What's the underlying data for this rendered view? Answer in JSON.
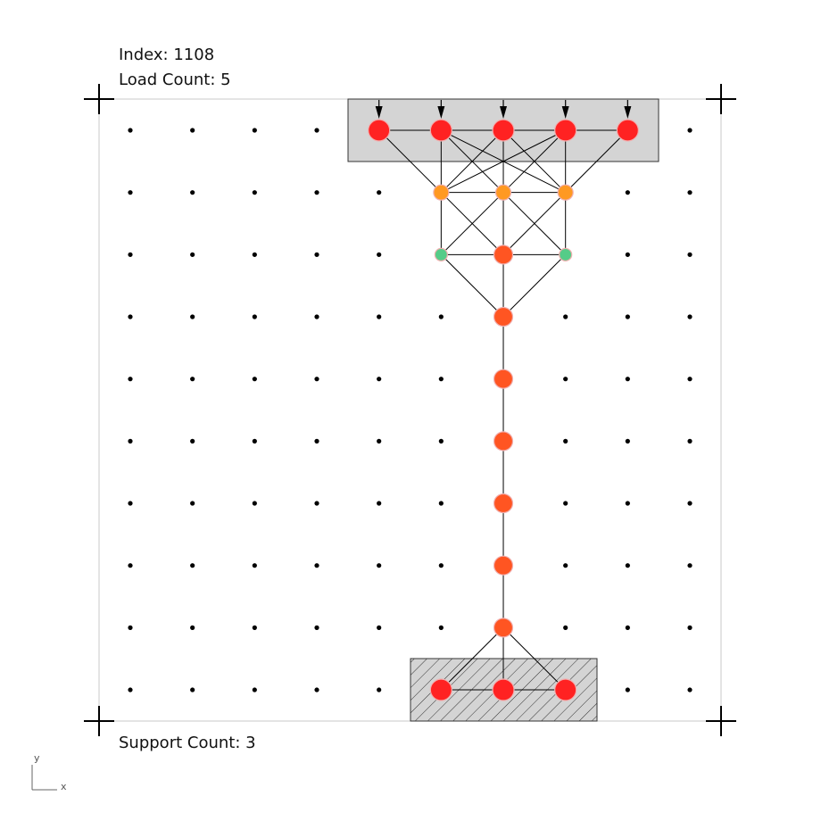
{
  "labels": {
    "index_prefix": "Index: ",
    "index_value": "1108",
    "load_prefix": "Load Count: ",
    "load_value": "5",
    "support_prefix": "Support Count: ",
    "support_value": "3"
  },
  "axis_indicator": {
    "x_label": "x",
    "y_label": "y"
  },
  "colors": {
    "boundary": "#c8c8c8",
    "grid_dot": "#000000",
    "edge": "#000000",
    "load_region_fill": "#d4d4d4",
    "support_region_fill": "#d4d4d4",
    "node_red": "#ff2222",
    "node_orange_red": "#ff5522",
    "node_orange": "#ff9922",
    "node_green": "#55cc88",
    "node_stroke": "#f0b0b0"
  },
  "grid": {
    "columns": 10,
    "rows": 10
  },
  "load_arrows": [
    [
      5,
      0
    ],
    [
      6,
      0
    ],
    [
      7,
      0
    ],
    [
      8,
      0
    ],
    [
      9,
      0
    ]
  ],
  "nodes": [
    {
      "id": "n1",
      "c": 5,
      "r": 0,
      "color": "red",
      "size": "large"
    },
    {
      "id": "n2",
      "c": 6,
      "r": 0,
      "color": "red",
      "size": "large"
    },
    {
      "id": "n3",
      "c": 7,
      "r": 0,
      "color": "red",
      "size": "large"
    },
    {
      "id": "n4",
      "c": 8,
      "r": 0,
      "color": "red",
      "size": "large"
    },
    {
      "id": "n5",
      "c": 9,
      "r": 0,
      "color": "red",
      "size": "large"
    },
    {
      "id": "n6",
      "c": 6,
      "r": 1,
      "color": "orange",
      "size": "medium"
    },
    {
      "id": "n7",
      "c": 7,
      "r": 1,
      "color": "orange",
      "size": "medium"
    },
    {
      "id": "n8",
      "c": 8,
      "r": 1,
      "color": "orange",
      "size": "medium"
    },
    {
      "id": "n9",
      "c": 6,
      "r": 2,
      "color": "green",
      "size": "small"
    },
    {
      "id": "n10",
      "c": 7,
      "r": 2,
      "color": "orange_red",
      "size": "medium_large"
    },
    {
      "id": "n11",
      "c": 8,
      "r": 2,
      "color": "green",
      "size": "small"
    },
    {
      "id": "n12",
      "c": 7,
      "r": 3,
      "color": "orange_red",
      "size": "medium_large"
    },
    {
      "id": "n13",
      "c": 7,
      "r": 4,
      "color": "orange_red",
      "size": "medium_large"
    },
    {
      "id": "n14",
      "c": 7,
      "r": 5,
      "color": "orange_red",
      "size": "medium_large"
    },
    {
      "id": "n15",
      "c": 7,
      "r": 6,
      "color": "orange_red",
      "size": "medium_large"
    },
    {
      "id": "n16",
      "c": 7,
      "r": 7,
      "color": "orange_red",
      "size": "medium_large"
    },
    {
      "id": "n17",
      "c": 7,
      "r": 8,
      "color": "orange_red",
      "size": "medium_large"
    },
    {
      "id": "n18",
      "c": 6,
      "r": 9,
      "color": "red",
      "size": "large"
    },
    {
      "id": "n19",
      "c": 7,
      "r": 9,
      "color": "red",
      "size": "large"
    },
    {
      "id": "n20",
      "c": 8,
      "r": 9,
      "color": "red",
      "size": "large"
    }
  ],
  "edges": [
    [
      "n1",
      "n2"
    ],
    [
      "n2",
      "n3"
    ],
    [
      "n3",
      "n4"
    ],
    [
      "n4",
      "n5"
    ],
    [
      "n1",
      "n6"
    ],
    [
      "n2",
      "n6"
    ],
    [
      "n2",
      "n7"
    ],
    [
      "n3",
      "n6"
    ],
    [
      "n3",
      "n7"
    ],
    [
      "n3",
      "n8"
    ],
    [
      "n4",
      "n7"
    ],
    [
      "n4",
      "n8"
    ],
    [
      "n5",
      "n8"
    ],
    [
      "n2",
      "n8"
    ],
    [
      "n4",
      "n6"
    ],
    [
      "n6",
      "n7"
    ],
    [
      "n7",
      "n8"
    ],
    [
      "n6",
      "n9"
    ],
    [
      "n6",
      "n10"
    ],
    [
      "n7",
      "n9"
    ],
    [
      "n7",
      "n10"
    ],
    [
      "n7",
      "n11"
    ],
    [
      "n8",
      "n10"
    ],
    [
      "n8",
      "n11"
    ],
    [
      "n9",
      "n10"
    ],
    [
      "n10",
      "n11"
    ],
    [
      "n9",
      "n12"
    ],
    [
      "n10",
      "n12"
    ],
    [
      "n11",
      "n12"
    ],
    [
      "n12",
      "n13"
    ],
    [
      "n13",
      "n14"
    ],
    [
      "n14",
      "n15"
    ],
    [
      "n15",
      "n16"
    ],
    [
      "n16",
      "n17"
    ],
    [
      "n17",
      "n18"
    ],
    [
      "n17",
      "n19"
    ],
    [
      "n17",
      "n20"
    ],
    [
      "n18",
      "n19"
    ],
    [
      "n19",
      "n20"
    ]
  ]
}
